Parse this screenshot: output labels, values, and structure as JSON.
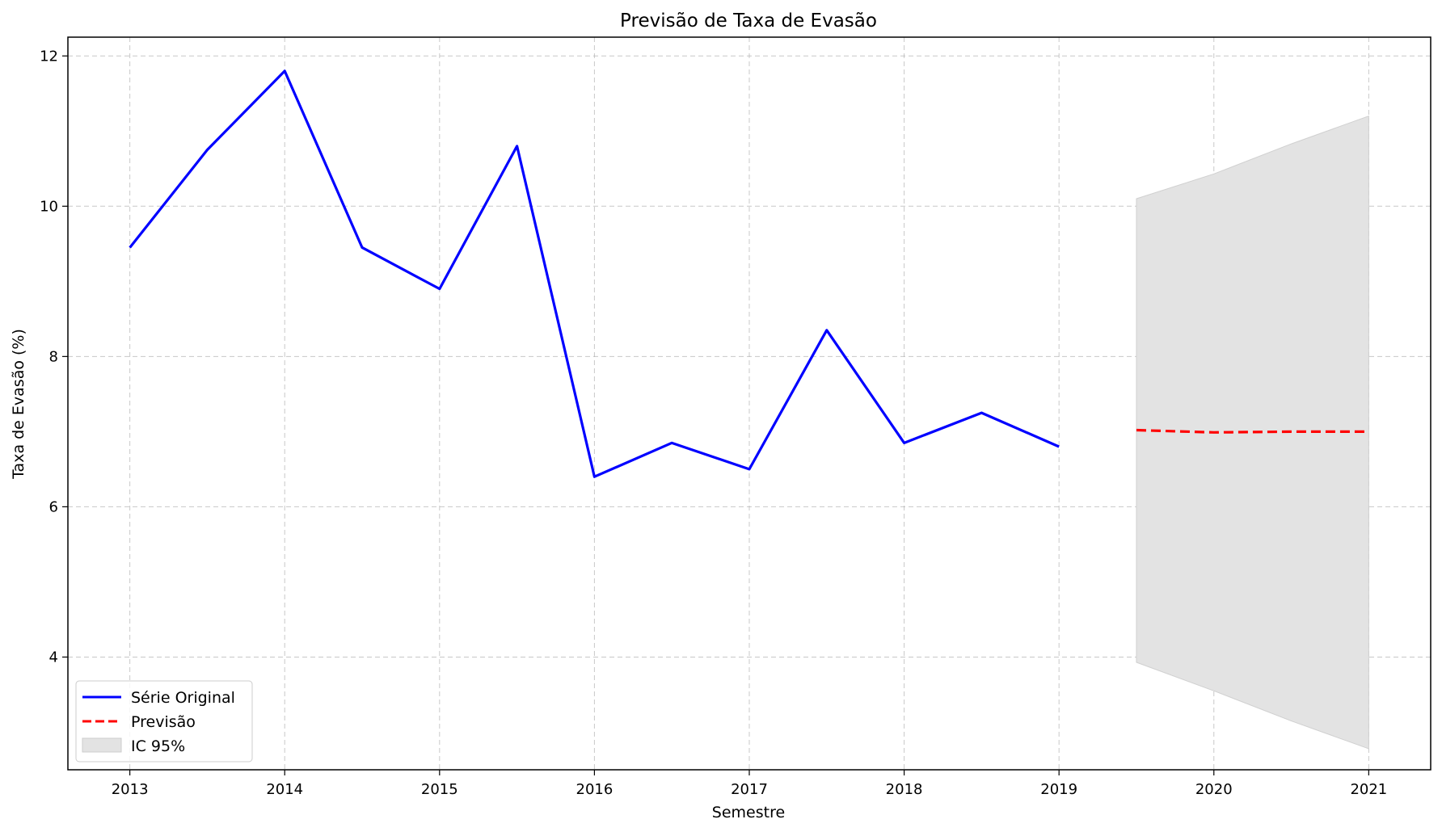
{
  "chart_data": {
    "type": "line",
    "title": "Previsão de Taxa de Evasão",
    "xlabel": "Semestre",
    "ylabel": "Taxa de Evasão (%)",
    "xlim": [
      2012.6,
      2021.4
    ],
    "ylim": [
      2.5,
      12.25
    ],
    "x_ticks": [
      2013,
      2014,
      2015,
      2016,
      2017,
      2018,
      2019,
      2020,
      2021
    ],
    "x_tick_labels": [
      "2013",
      "2014",
      "2015",
      "2016",
      "2017",
      "2018",
      "2019",
      "2020",
      "2021"
    ],
    "y_ticks": [
      4,
      6,
      8,
      10,
      12
    ],
    "y_tick_labels": [
      "4",
      "6",
      "8",
      "10",
      "12"
    ],
    "grid": true,
    "legend_position": "lower-left",
    "series": [
      {
        "name": "Série Original",
        "style": "solid",
        "color": "#0000ff",
        "x": [
          2013.0,
          2013.5,
          2014.0,
          2014.5,
          2015.0,
          2015.5,
          2016.0,
          2016.5,
          2017.0,
          2017.5,
          2018.0,
          2018.5,
          2019.0
        ],
        "y": [
          9.45,
          10.75,
          11.8,
          9.45,
          8.9,
          10.8,
          6.4,
          6.85,
          6.5,
          8.35,
          6.85,
          7.25,
          6.8
        ]
      },
      {
        "name": "Previsão",
        "style": "dashed",
        "color": "#ff0000",
        "x": [
          2019.5,
          2020.0,
          2020.5,
          2021.0
        ],
        "y": [
          7.02,
          6.99,
          7.0,
          7.0
        ]
      }
    ],
    "interval": {
      "name": "IC 95%",
      "color": "#e3e3e3",
      "x": [
        2019.5,
        2020.0,
        2020.5,
        2021.0
      ],
      "lower": [
        3.93,
        3.55,
        3.15,
        2.78
      ],
      "upper": [
        10.1,
        10.43,
        10.83,
        11.2
      ]
    }
  }
}
